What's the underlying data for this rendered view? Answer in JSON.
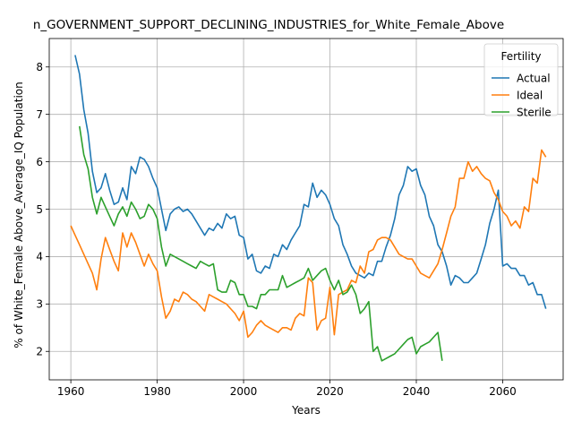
{
  "chart_data": {
    "type": "line",
    "title": "n_GOVERNMENT_SUPPORT_DECLINING_INDUSTRIES_for_White_Female_Above",
    "xlabel": "Years",
    "ylabel": "% of White_Female Above_Average_IQ Population",
    "xlim": [
      1955,
      2074
    ],
    "ylim": [
      1.4,
      8.6
    ],
    "xticks": [
      1960,
      1980,
      2000,
      2020,
      2040,
      2060
    ],
    "yticks": [
      2,
      3,
      4,
      5,
      6,
      7,
      8
    ],
    "grid": true,
    "legend": {
      "title": "Fertility",
      "placement": "top-right"
    },
    "series": [
      {
        "name": "Actual",
        "color": "#1f77b4",
        "x": [
          1961,
          1962,
          1963,
          1964,
          1965,
          1966,
          1967,
          1968,
          1969,
          1970,
          1971,
          1972,
          1973,
          1974,
          1975,
          1976,
          1977,
          1978,
          1979,
          1980,
          1981,
          1982,
          1983,
          1984,
          1985,
          1986,
          1987,
          1988,
          1989,
          1990,
          1991,
          1992,
          1993,
          1994,
          1995,
          1996,
          1997,
          1998,
          1999,
          2000,
          2001,
          2002,
          2003,
          2004,
          2005,
          2006,
          2007,
          2008,
          2009,
          2010,
          2011,
          2012,
          2013,
          2014,
          2015,
          2016,
          2017,
          2018,
          2019,
          2020,
          2021,
          2022,
          2023,
          2024,
          2025,
          2026,
          2027,
          2028,
          2029,
          2030,
          2031,
          2032,
          2033,
          2034,
          2035,
          2036,
          2037,
          2038,
          2039,
          2040,
          2041,
          2042,
          2043,
          2044,
          2045,
          2046,
          2047,
          2048,
          2049,
          2050,
          2051,
          2052,
          2053,
          2054,
          2055,
          2056,
          2057,
          2058,
          2059,
          2060,
          2061,
          2062,
          2063,
          2064,
          2065,
          2066,
          2067,
          2068,
          2069,
          2070
        ],
        "values": [
          8.25,
          7.85,
          7.1,
          6.6,
          5.8,
          5.35,
          5.45,
          5.75,
          5.4,
          5.1,
          5.15,
          5.45,
          5.2,
          5.9,
          5.75,
          6.1,
          6.05,
          5.9,
          5.65,
          5.45,
          5.0,
          4.55,
          4.9,
          5.0,
          5.05,
          4.95,
          5.0,
          4.9,
          4.75,
          4.6,
          4.45,
          4.6,
          4.55,
          4.7,
          4.6,
          4.9,
          4.8,
          4.85,
          4.45,
          4.4,
          3.95,
          4.05,
          3.7,
          3.65,
          3.8,
          3.75,
          4.05,
          4.0,
          4.25,
          4.15,
          4.35,
          4.5,
          4.65,
          5.1,
          5.05,
          5.55,
          5.25,
          5.4,
          5.3,
          5.1,
          4.8,
          4.65,
          4.25,
          4.05,
          3.8,
          3.65,
          3.6,
          3.55,
          3.65,
          3.6,
          3.9,
          3.9,
          4.2,
          4.45,
          4.8,
          5.3,
          5.5,
          5.9,
          5.8,
          5.85,
          5.5,
          5.3,
          4.85,
          4.65,
          4.25,
          4.1,
          3.8,
          3.4,
          3.6,
          3.55,
          3.45,
          3.45,
          3.55,
          3.65,
          3.95,
          4.25,
          4.7,
          5.0,
          5.4,
          3.8,
          3.85,
          3.75,
          3.75,
          3.6,
          3.6,
          3.4,
          3.45,
          3.2,
          3.2,
          2.9
        ]
      },
      {
        "name": "Ideal",
        "color": "#ff7f0e",
        "x": [
          1960,
          1961,
          1962,
          1963,
          1964,
          1965,
          1966,
          1967,
          1968,
          1969,
          1970,
          1971,
          1972,
          1973,
          1974,
          1975,
          1976,
          1977,
          1978,
          1979,
          1980,
          1981,
          1982,
          1983,
          1984,
          1985,
          1986,
          1987,
          1988,
          1989,
          1990,
          1991,
          1992,
          1993,
          1994,
          1995,
          1996,
          1997,
          1998,
          1999,
          2000,
          2001,
          2002,
          2003,
          2004,
          2005,
          2006,
          2007,
          2008,
          2009,
          2010,
          2011,
          2012,
          2013,
          2014,
          2015,
          2016,
          2017,
          2018,
          2019,
          2020,
          2021,
          2022,
          2023,
          2024,
          2025,
          2026,
          2027,
          2028,
          2029,
          2030,
          2031,
          2032,
          2033,
          2034,
          2035,
          2036,
          2037,
          2038,
          2039,
          2040,
          2041,
          2042,
          2043,
          2044,
          2045,
          2046,
          2047,
          2048,
          2049,
          2050,
          2051,
          2052,
          2053,
          2054,
          2055,
          2056,
          2057,
          2058,
          2059,
          2060,
          2061,
          2062,
          2063,
          2064,
          2065,
          2066,
          2067,
          2068,
          2069,
          2070
        ],
        "values": [
          4.65,
          4.45,
          4.25,
          4.05,
          3.85,
          3.65,
          3.3,
          3.95,
          4.4,
          4.15,
          3.9,
          3.7,
          4.5,
          4.2,
          4.5,
          4.3,
          4.05,
          3.8,
          4.05,
          3.85,
          3.7,
          3.15,
          2.7,
          2.85,
          3.1,
          3.05,
          3.25,
          3.2,
          3.1,
          3.05,
          2.95,
          2.85,
          3.2,
          3.15,
          3.1,
          3.05,
          3.0,
          2.9,
          2.8,
          2.65,
          2.85,
          2.3,
          2.4,
          2.55,
          2.65,
          2.55,
          2.5,
          2.45,
          2.4,
          2.5,
          2.5,
          2.45,
          2.7,
          2.8,
          2.75,
          3.55,
          3.45,
          2.45,
          2.65,
          2.7,
          3.35,
          2.35,
          3.2,
          3.25,
          3.3,
          3.5,
          3.45,
          3.8,
          3.65,
          4.1,
          4.15,
          4.35,
          4.4,
          4.4,
          4.35,
          4.2,
          4.05,
          4.0,
          3.95,
          3.95,
          3.8,
          3.65,
          3.6,
          3.55,
          3.7,
          3.85,
          4.15,
          4.5,
          4.85,
          5.05,
          5.65,
          5.65,
          6.0,
          5.8,
          5.9,
          5.75,
          5.65,
          5.6,
          5.35,
          5.2,
          4.95,
          4.85,
          4.65,
          4.75,
          4.6,
          5.05,
          4.95,
          5.65,
          5.55,
          6.25,
          6.1
        ]
      },
      {
        "name": "Sterile",
        "color": "#2ca02c",
        "x": [
          1962,
          1963,
          1964,
          1965,
          1966,
          1967,
          1968,
          1969,
          1970,
          1971,
          1972,
          1973,
          1974,
          1975,
          1976,
          1977,
          1978,
          1979,
          1980,
          1981,
          1982,
          1983,
          1984,
          1985,
          1986,
          1987,
          1988,
          1989,
          1990,
          1991,
          1992,
          1993,
          1994,
          1995,
          1996,
          1997,
          1998,
          1999,
          2000,
          2001,
          2002,
          2003,
          2004,
          2005,
          2006,
          2007,
          2008,
          2009,
          2010,
          2011,
          2012,
          2013,
          2014,
          2015,
          2016,
          2017,
          2018,
          2019,
          2020,
          2021,
          2022,
          2023,
          2024,
          2025,
          2026,
          2027,
          2028,
          2029,
          2030,
          2031,
          2032,
          2033,
          2034,
          2035,
          2036,
          2037,
          2038,
          2039,
          2040,
          2041,
          2042,
          2043,
          2044,
          2045,
          2046
        ],
        "values": [
          6.75,
          6.15,
          5.85,
          5.25,
          4.9,
          5.25,
          5.05,
          4.85,
          4.65,
          4.9,
          5.05,
          4.85,
          5.15,
          5.0,
          4.8,
          4.85,
          5.1,
          5.0,
          4.8,
          4.2,
          3.8,
          4.05,
          4.0,
          3.95,
          3.9,
          3.85,
          3.8,
          3.75,
          3.9,
          3.85,
          3.8,
          3.85,
          3.3,
          3.25,
          3.25,
          3.5,
          3.45,
          3.2,
          3.2,
          2.95,
          2.95,
          2.9,
          3.2,
          3.2,
          3.3,
          3.3,
          3.3,
          3.6,
          3.35,
          3.4,
          3.45,
          3.5,
          3.55,
          3.75,
          3.5,
          3.6,
          3.7,
          3.75,
          3.5,
          3.3,
          3.5,
          3.2,
          3.25,
          3.4,
          3.2,
          2.8,
          2.9,
          3.05,
          2.0,
          2.1,
          1.8,
          1.85,
          1.9,
          1.95,
          2.05,
          2.15,
          2.25,
          2.3,
          1.95,
          2.1,
          2.15,
          2.2,
          2.3,
          2.4,
          1.8
        ]
      }
    ]
  }
}
